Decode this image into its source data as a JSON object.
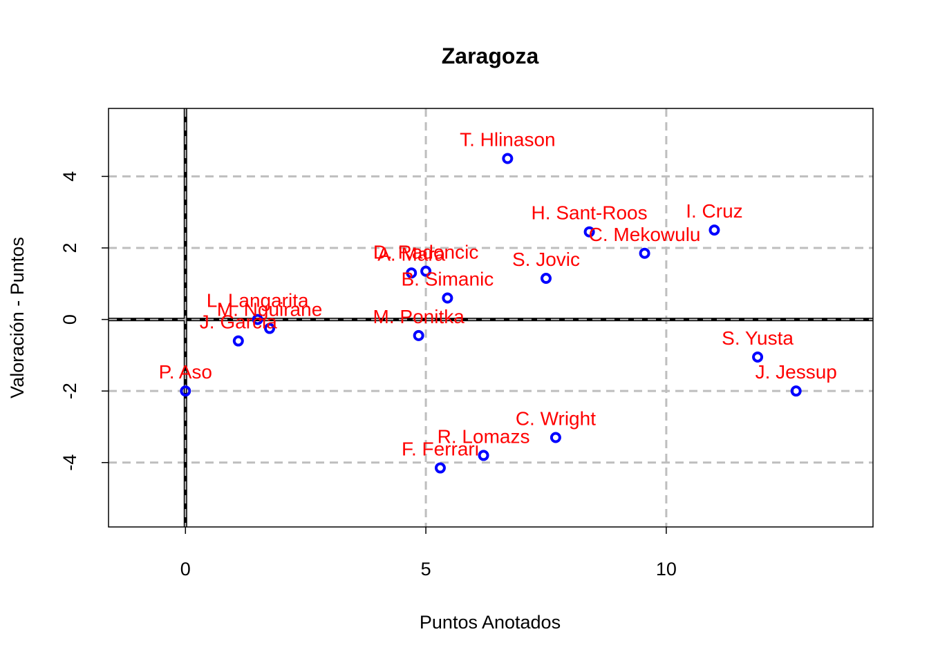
{
  "chart_data": {
    "type": "scatter",
    "title": "Zaragoza",
    "xlabel": "Puntos Anotados",
    "ylabel": "Valoración - Puntos",
    "xlim": [
      -1.6,
      14.3
    ],
    "ylim": [
      -5.8,
      5.9
    ],
    "xticks": [
      0,
      5,
      10
    ],
    "yticks": [
      -4,
      -2,
      0,
      2,
      4
    ],
    "grid": true,
    "reference_lines": {
      "x": 0,
      "y": 0
    },
    "point_color": "#0000ff",
    "label_color": "#ff0000",
    "grid_color": "#bebebe",
    "points": [
      {
        "label": "T. Hlinason",
        "x": 6.7,
        "y": 4.5
      },
      {
        "label": "H. Sant-Roos",
        "x": 8.4,
        "y": 2.45
      },
      {
        "label": "I. Cruz",
        "x": 11.0,
        "y": 2.5
      },
      {
        "label": "C. Mekowulu",
        "x": 9.55,
        "y": 1.85
      },
      {
        "label": "S. Jovic",
        "x": 7.5,
        "y": 1.15
      },
      {
        "label": "D. Radoncic",
        "x": 5.0,
        "y": 1.35
      },
      {
        "label": "A. Mara",
        "x": 4.7,
        "y": 1.3
      },
      {
        "label": "B. Simanic",
        "x": 5.45,
        "y": 0.6
      },
      {
        "label": "L. Langarita",
        "x": 1.5,
        "y": 0.0
      },
      {
        "label": "M. Nguirane",
        "x": 1.75,
        "y": -0.25
      },
      {
        "label": "J. Garcia",
        "x": 1.1,
        "y": -0.6
      },
      {
        "label": "M. Ponitka",
        "x": 4.85,
        "y": -0.45
      },
      {
        "label": "S. Yusta",
        "x": 11.9,
        "y": -1.05
      },
      {
        "label": "J. Jessup",
        "x": 12.7,
        "y": -2.0
      },
      {
        "label": "P. Aso",
        "x": 0.0,
        "y": -2.0
      },
      {
        "label": "C. Wright",
        "x": 7.7,
        "y": -3.3
      },
      {
        "label": "R. Lomazs",
        "x": 6.2,
        "y": -3.8
      },
      {
        "label": "F. Ferrari",
        "x": 5.3,
        "y": -4.15
      }
    ]
  }
}
